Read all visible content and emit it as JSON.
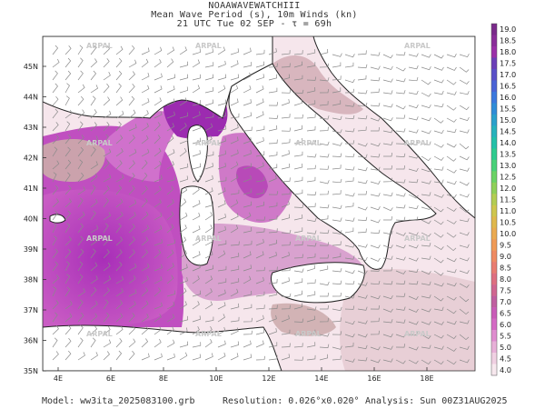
{
  "title": {
    "line1": "NOAAWAVEWATCHIII",
    "line2": "Mean Wave Period (s), 10m Winds (kn)",
    "line3": "21 UTC Tue 02 SEP  -  τ = 69h"
  },
  "axes": {
    "lon_labels": [
      "4E",
      "6E",
      "8E",
      "10E",
      "12E",
      "14E",
      "16E",
      "18E"
    ],
    "lat_labels": [
      "45N",
      "44N",
      "43N",
      "42N",
      "41N",
      "40N",
      "39N",
      "38N",
      "37N",
      "36N",
      "35N"
    ]
  },
  "colorbar": {
    "labels": [
      "19.0",
      "18.5",
      "18.0",
      "17.5",
      "17.0",
      "16.5",
      "16.0",
      "15.5",
      "15.0",
      "14.5",
      "14.0",
      "13.5",
      "13.0",
      "12.5",
      "12.0",
      "11.5",
      "11.0",
      "10.5",
      "10.0",
      "9.5",
      "9.0",
      "8.5",
      "8.0",
      "7.5",
      "7.0",
      "6.5",
      "6.0",
      "5.5",
      "5.0",
      "4.5",
      "4.0"
    ],
    "colors": [
      "#7a2a8a",
      "#8a2d99",
      "#9a2fa8",
      "#6b3fb8",
      "#5a50c8",
      "#4a63d6",
      "#3b78de",
      "#2f8cd8",
      "#2aa0cc",
      "#26b2bc",
      "#23c0a8",
      "#2ecb8f",
      "#49d178",
      "#6bd365",
      "#8fd058",
      "#b3cd52",
      "#cfc64d",
      "#e0b84c",
      "#ebaa50",
      "#f09a56",
      "#ef8a62",
      "#e97c70",
      "#de6f80",
      "#d06690",
      "#c05fa0",
      "#c95cb8",
      "#d46ac4",
      "#df8ccf",
      "#e8b0d8",
      "#f0d0e2",
      "#f7e8ee"
    ]
  },
  "watermark": "ARPAL",
  "footer": {
    "model": "Model: ww3ita_2025083100.grb",
    "resolution": "Resolution: 0.026°x0.020°",
    "analysis": "Analysis: Sun 00Z31AUG2025"
  }
}
